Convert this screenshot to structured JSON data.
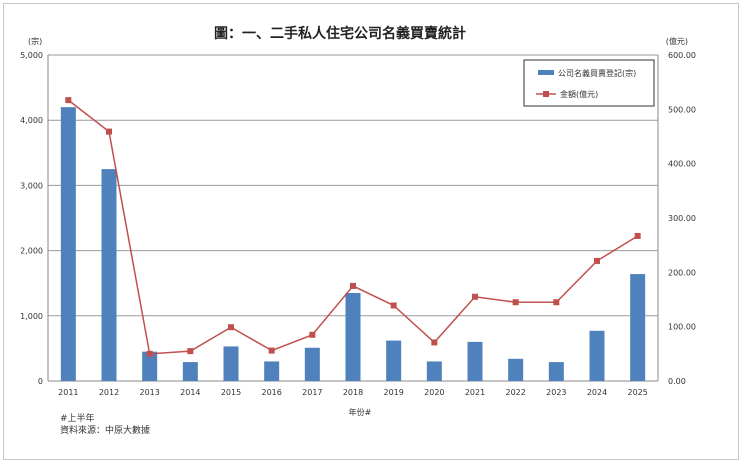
{
  "chart_data": {
    "type": "bar+line",
    "title": "圖：一、二手私人住宅公司名義買賣統計",
    "xlabel": "年份#",
    "left_unit": "(宗)",
    "right_unit": "(億元)",
    "left_ticks": [
      "0",
      "1,000",
      "2,000",
      "3,000",
      "4,000",
      "5,000"
    ],
    "right_ticks": [
      "0.00",
      "100.00",
      "200.00",
      "300.00",
      "400.00",
      "500.00",
      "600.00"
    ],
    "left_ylim": [
      0,
      5000
    ],
    "right_ylim": [
      0,
      600
    ],
    "categories": [
      "2011",
      "2012",
      "2013",
      "2014",
      "2015",
      "2016",
      "2017",
      "2018",
      "2019",
      "2020",
      "2021",
      "2022",
      "2023",
      "2024",
      "2025"
    ],
    "series": [
      {
        "name": "公司名義買賣登記(宗)",
        "kind": "bar",
        "axis": "left",
        "color": "#4f81bd",
        "values": [
          4200,
          3250,
          450,
          290,
          530,
          300,
          510,
          1350,
          620,
          300,
          600,
          340,
          290,
          770,
          1640
        ]
      },
      {
        "name": "金額(億元)",
        "kind": "line",
        "axis": "right",
        "color": "#c0504d",
        "values": [
          517,
          459,
          50,
          55,
          99,
          56,
          85,
          175,
          139,
          71,
          155,
          145,
          145,
          221,
          267
        ]
      }
    ],
    "gridlines": true,
    "legend_position": "top-right"
  },
  "footnotes": {
    "line1": "#上半年",
    "line2": "資料來源：中原大數據"
  }
}
